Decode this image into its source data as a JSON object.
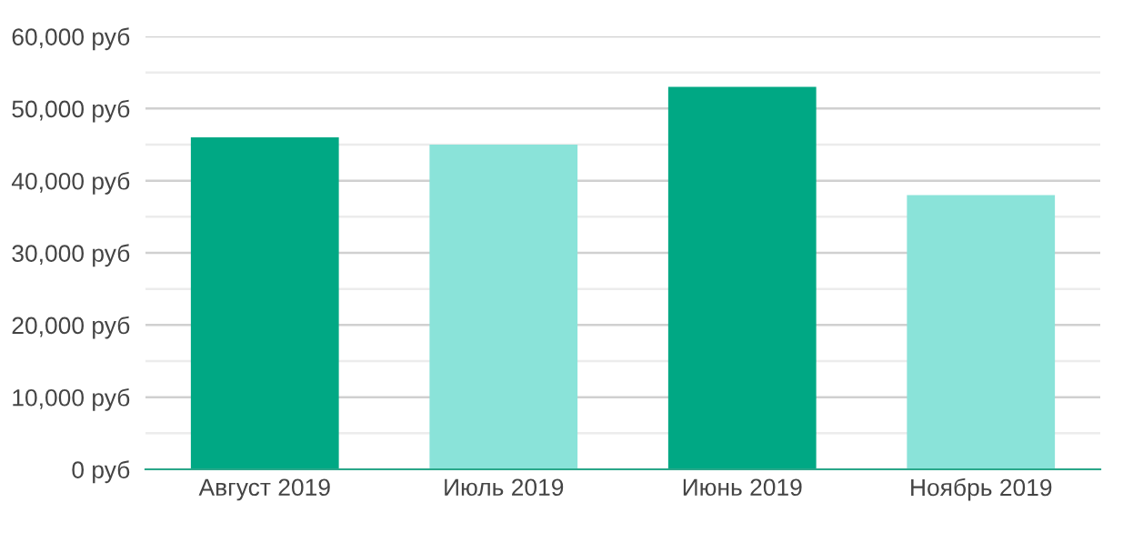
{
  "chart_data": {
    "type": "bar",
    "categories": [
      "Август 2019",
      "Июль 2019",
      "Июнь 2019",
      "Ноябрь 2019"
    ],
    "values": [
      46000,
      45000,
      53000,
      38000
    ],
    "colors": [
      "#00a884",
      "#8ae3d9",
      "#00a884",
      "#8ae3d9"
    ],
    "ylim": [
      0,
      60000
    ],
    "yticks": [
      {
        "value": 0,
        "label": "0 руб"
      },
      {
        "value": 5000,
        "label": null
      },
      {
        "value": 10000,
        "label": "10,000 руб"
      },
      {
        "value": 15000,
        "label": null
      },
      {
        "value": 20000,
        "label": "20,000 руб"
      },
      {
        "value": 25000,
        "label": null
      },
      {
        "value": 30000,
        "label": "30,000 руб"
      },
      {
        "value": 35000,
        "label": null
      },
      {
        "value": 40000,
        "label": "40,000 руб"
      },
      {
        "value": 45000,
        "label": null
      },
      {
        "value": 50000,
        "label": "50,000 руб"
      },
      {
        "value": 55000,
        "label": null
      },
      {
        "value": 60000,
        "label": "60,000 руб"
      }
    ],
    "grid": "y"
  }
}
